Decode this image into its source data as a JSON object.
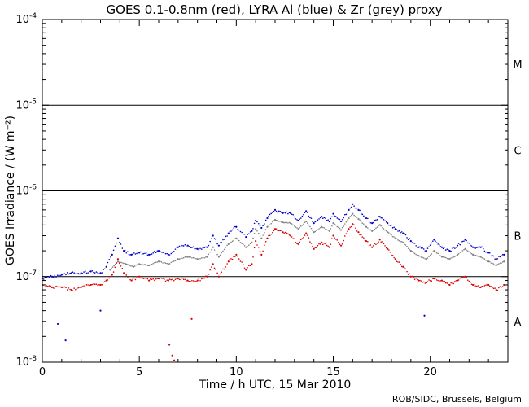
{
  "chart_data": {
    "type": "scatter",
    "title": "GOES 0.1-0.8nm (red), LYRA Al (blue) & Zr (grey) proxy",
    "xlabel": "Time / h UTC, 15 Mar 2010",
    "ylabel": "GOES Irradiance / (W m⁻²)",
    "xlim": [
      0,
      24
    ],
    "ylim": [
      1e-08,
      0.0001
    ],
    "y_scale": "log",
    "x_ticks": [
      0,
      5,
      10,
      15,
      20
    ],
    "y_ticks": [
      1e-08,
      1e-07,
      1e-06,
      1e-05,
      0.0001
    ],
    "y_tick_labels": [
      {
        "base": "10",
        "exp": "-8"
      },
      {
        "base": "10",
        "exp": "-7"
      },
      {
        "base": "10",
        "exp": "-6"
      },
      {
        "base": "10",
        "exp": "-5"
      },
      {
        "base": "10",
        "exp": "-4"
      }
    ],
    "reference_lines": [
      1e-07,
      1e-06,
      1e-05
    ],
    "flare_classes": [
      {
        "label": "A",
        "y": 3e-08
      },
      {
        "label": "B",
        "y": 3e-07
      },
      {
        "label": "C",
        "y": 3e-06
      },
      {
        "label": "M",
        "y": 3e-05
      }
    ],
    "series": [
      {
        "color": "#0000cc",
        "x": [
          0,
          0.5,
          1,
          1.5,
          2,
          2.5,
          3,
          3.3,
          3.6,
          3.9,
          4.2,
          4.6,
          5,
          5.5,
          6,
          6.5,
          7,
          7.5,
          8,
          8.5,
          8.8,
          9.1,
          9.6,
          10,
          10.5,
          10.8,
          11,
          11.3,
          11.6,
          12,
          12.4,
          12.8,
          13.2,
          13.6,
          14,
          14.4,
          14.8,
          15,
          15.4,
          15.8,
          16,
          16.3,
          16.7,
          17,
          17.4,
          17.8,
          18.2,
          18.6,
          19,
          19.4,
          19.8,
          20.2,
          20.6,
          21,
          21.4,
          21.8,
          22.2,
          22.6,
          23,
          23.4,
          23.8
        ],
        "y": [
          9.5e-08,
          1e-07,
          1.05e-07,
          1.1e-07,
          1.1e-07,
          1.15e-07,
          1.1e-07,
          1.3e-07,
          1.8e-07,
          2.8e-07,
          2e-07,
          1.8e-07,
          1.9e-07,
          1.8e-07,
          2e-07,
          1.8e-07,
          2.2e-07,
          2.3e-07,
          2.1e-07,
          2.2e-07,
          3e-07,
          2.3e-07,
          3.2e-07,
          3.8e-07,
          2.9e-07,
          3.4e-07,
          4.5e-07,
          3.7e-07,
          4.8e-07,
          6e-07,
          5.5e-07,
          5.5e-07,
          4.5e-07,
          5.8e-07,
          4.2e-07,
          5e-07,
          4.4e-07,
          5.4e-07,
          4.4e-07,
          6e-07,
          7e-07,
          6e-07,
          4.8e-07,
          4.2e-07,
          5e-07,
          4.2e-07,
          3.6e-07,
          3.2e-07,
          2.6e-07,
          2.2e-07,
          2e-07,
          2.7e-07,
          2.2e-07,
          2e-07,
          2.3e-07,
          2.7e-07,
          2.2e-07,
          2.2e-07,
          1.9e-07,
          1.6e-07,
          1.8e-07
        ]
      },
      {
        "color": "#808080",
        "x": [
          3.5,
          3.9,
          4.3,
          4.7,
          5,
          5.5,
          6,
          6.5,
          7,
          7.5,
          8,
          8.5,
          8.8,
          9.1,
          9.6,
          10,
          10.5,
          10.8,
          11,
          11.3,
          11.6,
          12,
          12.4,
          12.8,
          13.2,
          13.6,
          14,
          14.4,
          14.8,
          15,
          15.4,
          15.8,
          16,
          16.3,
          16.7,
          17,
          17.4,
          17.8,
          18.2,
          18.6,
          19,
          19.4,
          19.8,
          20.2,
          20.6,
          21,
          21.4,
          21.8,
          22.2,
          22.6,
          23,
          23.4,
          23.8
        ],
        "y": [
          1.2e-07,
          1.5e-07,
          1.4e-07,
          1.3e-07,
          1.4e-07,
          1.35e-07,
          1.5e-07,
          1.4e-07,
          1.6e-07,
          1.7e-07,
          1.6e-07,
          1.7e-07,
          2.2e-07,
          1.7e-07,
          2.4e-07,
          2.8e-07,
          2.2e-07,
          2.5e-07,
          3.6e-07,
          2.8e-07,
          3.8e-07,
          4.6e-07,
          4.3e-07,
          4.2e-07,
          3.6e-07,
          4.4e-07,
          3.3e-07,
          3.8e-07,
          3.4e-07,
          4.2e-07,
          3.5e-07,
          4.8e-07,
          5.4e-07,
          4.7e-07,
          3.8e-07,
          3.4e-07,
          4e-07,
          3.3e-07,
          2.8e-07,
          2.5e-07,
          2e-07,
          1.75e-07,
          1.6e-07,
          2e-07,
          1.7e-07,
          1.6e-07,
          1.8e-07,
          2.1e-07,
          1.8e-07,
          1.7e-07,
          1.5e-07,
          1.35e-07,
          1.5e-07
        ]
      },
      {
        "color": "#dd0000",
        "x": [
          0,
          0.5,
          1,
          1.5,
          2,
          2.5,
          3,
          3.3,
          3.6,
          3.9,
          4.2,
          4.6,
          5,
          5.5,
          6,
          6.5,
          7,
          7.5,
          8,
          8.5,
          8.8,
          9.1,
          9.6,
          10,
          10.5,
          10.8,
          11,
          11.3,
          11.6,
          12,
          12.4,
          12.8,
          13.2,
          13.6,
          14,
          14.4,
          14.8,
          15,
          15.4,
          15.8,
          16,
          16.3,
          16.7,
          17,
          17.4,
          17.8,
          18.2,
          18.6,
          19,
          19.4,
          19.8,
          20.2,
          20.6,
          21,
          21.4,
          21.8,
          22.2,
          22.6,
          23,
          23.4,
          23.8
        ],
        "y": [
          8e-08,
          7.5e-08,
          7.5e-08,
          7e-08,
          7.5e-08,
          8e-08,
          8e-08,
          9e-08,
          1.05e-07,
          1.6e-07,
          1.1e-07,
          9e-08,
          1e-07,
          9e-08,
          9.5e-08,
          9e-08,
          9.5e-08,
          9e-08,
          9e-08,
          1e-07,
          1.4e-07,
          1e-07,
          1.5e-07,
          1.8e-07,
          1.2e-07,
          1.4e-07,
          2.6e-07,
          1.8e-07,
          2.8e-07,
          3.6e-07,
          3.3e-07,
          3e-07,
          2.4e-07,
          3.2e-07,
          2.1e-07,
          2.5e-07,
          2.2e-07,
          3e-07,
          2.3e-07,
          3.6e-07,
          4.1e-07,
          3.3e-07,
          2.6e-07,
          2.2e-07,
          2.7e-07,
          2.1e-07,
          1.6e-07,
          1.3e-07,
          1e-07,
          9e-08,
          8.5e-08,
          9.5e-08,
          9e-08,
          8e-08,
          9e-08,
          1e-07,
          8e-08,
          7.5e-08,
          8e-08,
          7e-08,
          8e-08
        ]
      }
    ],
    "outliers": [
      {
        "x": 0.8,
        "y": 2.8e-08,
        "color": "#0000cc"
      },
      {
        "x": 1.2,
        "y": 1.8e-08,
        "color": "#0000cc"
      },
      {
        "x": 3.0,
        "y": 4e-08,
        "color": "#0000cc"
      },
      {
        "x": 6.55,
        "y": 1.6e-08,
        "color": "#dd0000"
      },
      {
        "x": 6.7,
        "y": 1.2e-08,
        "color": "#dd0000"
      },
      {
        "x": 6.8,
        "y": 1.05e-08,
        "color": "#dd0000"
      },
      {
        "x": 7.7,
        "y": 3.2e-08,
        "color": "#dd0000"
      },
      {
        "x": 19.7,
        "y": 3.5e-08,
        "color": "#0000cc"
      }
    ]
  },
  "footer": {
    "source": "ROB/SIDC, Brussels, Belgium"
  }
}
